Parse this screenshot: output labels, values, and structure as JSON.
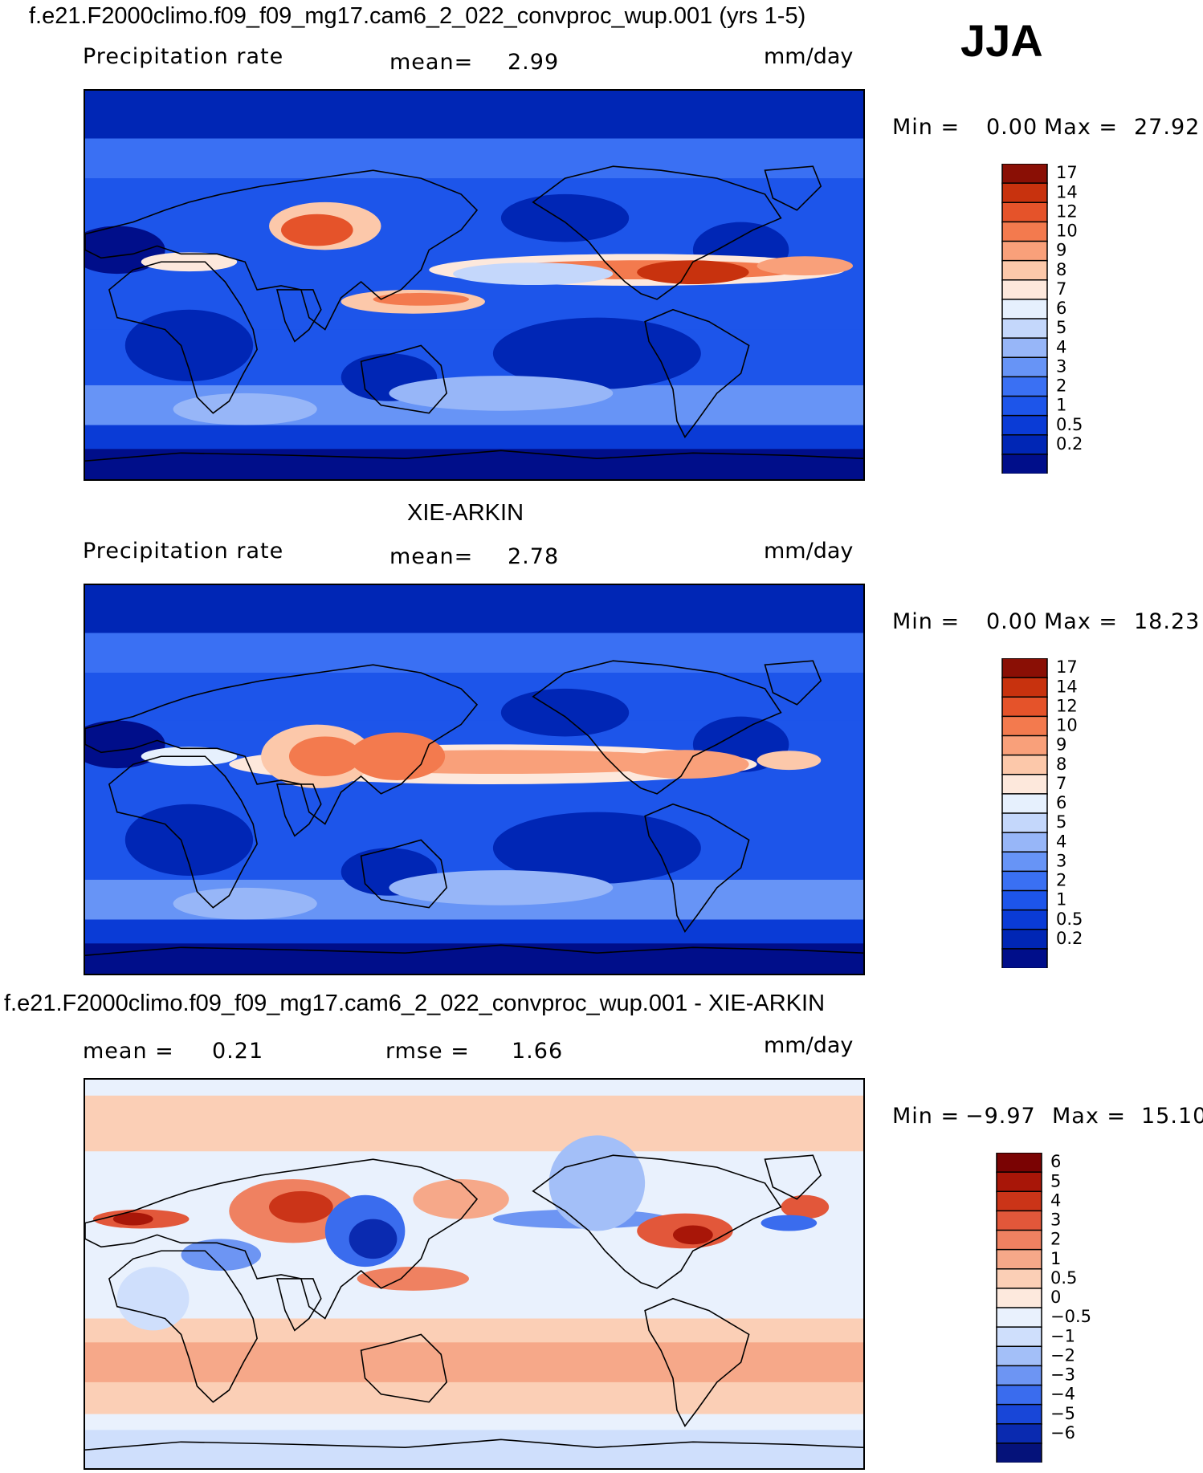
{
  "season": "JJA",
  "panels": [
    {
      "title": "f.e21.F2000climo.f09_f09_mg17.cam6_2_022_convproc_wup.001 (yrs 1-5)",
      "left_label": "Precipitation rate",
      "stat1_label": "mean=",
      "stat1_value": "2.99",
      "stat2_label": "",
      "stat2_value": "",
      "units": "mm/day",
      "min_label": "Min =",
      "min_value": "0.00",
      "max_label": "Max =",
      "max_value": "27.92"
    },
    {
      "title": "XIE-ARKIN",
      "left_label": "Precipitation rate",
      "stat1_label": "mean=",
      "stat1_value": "2.78",
      "stat2_label": "",
      "stat2_value": "",
      "units": "mm/day",
      "min_label": "Min =",
      "min_value": "0.00",
      "max_label": "Max =",
      "max_value": "18.23"
    },
    {
      "title": "f.e21.F2000climo.f09_f09_mg17.cam6_2_022_convproc_wup.001 - XIE-ARKIN",
      "left_label": "mean =",
      "left_value": "0.21",
      "stat1_label": "rmse =",
      "stat1_value": "1.66",
      "units": "mm/day",
      "min_label": "Min =",
      "min_value": "−9.97",
      "max_label": "Max =",
      "max_value": "15.10"
    }
  ],
  "chart_data": [
    {
      "type": "heatmap",
      "title": "f.e21.F2000climo.f09_f09_mg17.cam6_2_022_convproc_wup.001 (yrs 1-5)",
      "variable": "Precipitation rate",
      "units": "mm/day",
      "mean": 2.99,
      "min": 0.0,
      "max": 27.92,
      "colorbar_levels": [
        "0.2",
        "0.5",
        "1",
        "2",
        "3",
        "4",
        "5",
        "6",
        "7",
        "8",
        "9",
        "10",
        "12",
        "14",
        "17"
      ],
      "colors": [
        "#000e8a",
        "#0026b5",
        "#0a3bd6",
        "#1d55ea",
        "#3a70f3",
        "#6794f6",
        "#97b6f8",
        "#c4d7fb",
        "#e6f0fd",
        "#fde8dc",
        "#fcc8aa",
        "#f9a07a",
        "#f37a4e",
        "#e5532a",
        "#c8320e",
        "#8a0f05"
      ]
    },
    {
      "type": "heatmap",
      "title": "XIE-ARKIN",
      "variable": "Precipitation rate",
      "units": "mm/day",
      "mean": 2.78,
      "min": 0.0,
      "max": 18.23,
      "colorbar_levels": [
        "0.2",
        "0.5",
        "1",
        "2",
        "3",
        "4",
        "5",
        "6",
        "7",
        "8",
        "9",
        "10",
        "12",
        "14",
        "17"
      ],
      "colors": [
        "#000e8a",
        "#0026b5",
        "#0a3bd6",
        "#1d55ea",
        "#3a70f3",
        "#6794f6",
        "#97b6f8",
        "#c4d7fb",
        "#e6f0fd",
        "#fde8dc",
        "#fcc8aa",
        "#f9a07a",
        "#f37a4e",
        "#e5532a",
        "#c8320e",
        "#8a0f05"
      ]
    },
    {
      "type": "heatmap",
      "title": "f.e21.F2000climo.f09_f09_mg17.cam6_2_022_convproc_wup.001 - XIE-ARKIN",
      "units": "mm/day",
      "mean": 0.21,
      "rmse": 1.66,
      "min": -9.97,
      "max": 15.1,
      "colorbar_levels": [
        "−6",
        "−5",
        "−4",
        "−3",
        "−2",
        "−1",
        "−0.5",
        "0",
        "0.5",
        "1",
        "2",
        "3",
        "4",
        "5",
        "6"
      ],
      "colors": [
        "#05127a",
        "#0a2ab0",
        "#1846d8",
        "#3a6cee",
        "#6d95f3",
        "#a3bff8",
        "#cfdffc",
        "#e9f1fd",
        "#fde9dd",
        "#fbcfb6",
        "#f6a889",
        "#ef8161",
        "#e2573a",
        "#cb3418",
        "#a81608",
        "#7a0303"
      ]
    }
  ]
}
